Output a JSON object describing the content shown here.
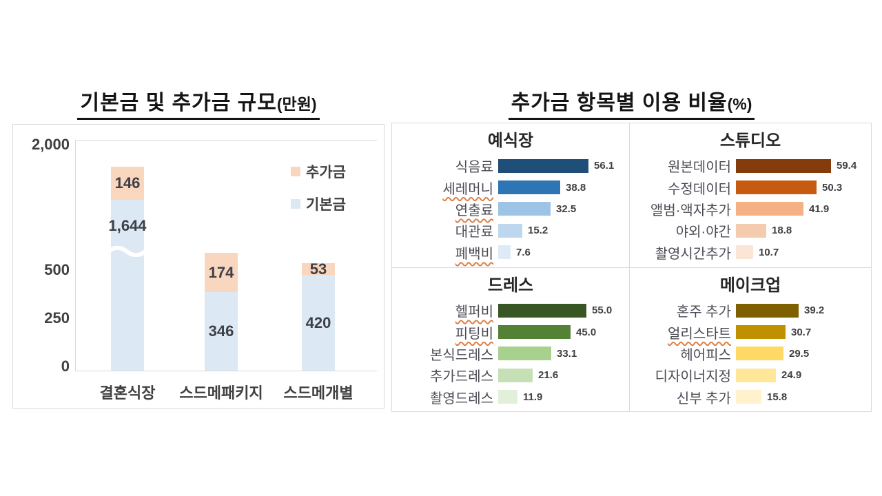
{
  "left_section": {
    "title": "기본금 및 추가금 규모",
    "unit": "(만원)"
  },
  "right_section": {
    "title": "추가금 항목별 이용 비율",
    "unit": "(%)"
  },
  "chart_data": [
    {
      "type": "bar",
      "stacked": true,
      "axis_break": true,
      "title": "기본금 및 추가금 규모(만원)",
      "categories": [
        "결혼식장",
        "스드메패키지",
        "스드메개별"
      ],
      "series": [
        {
          "name": "기본금",
          "color": "#DCE8F4",
          "values": [
            "1,644",
            "346",
            "420"
          ]
        },
        {
          "name": "추가금",
          "color": "#F9D6BE",
          "values": [
            "146",
            "174",
            "53"
          ]
        }
      ],
      "yticks": [
        "2,000",
        "500",
        "250",
        "0"
      ],
      "ylim": [
        0,
        2000
      ],
      "legend": [
        {
          "label": "추가금",
          "color": "#F9D6BE"
        },
        {
          "label": "기본금",
          "color": "#DCE8F4"
        }
      ],
      "legend_position": "top-right",
      "grid": false
    },
    {
      "type": "bar",
      "orientation": "horizontal",
      "title": "예식장",
      "rows": [
        {
          "label": "식음료",
          "value": "56.1",
          "color": "#1F4E79",
          "squiggle": false
        },
        {
          "label": "세레머니",
          "value": "38.8",
          "color": "#2E75B6",
          "squiggle": true
        },
        {
          "label": "연출료",
          "value": "32.5",
          "color": "#9DC3E6",
          "squiggle": true
        },
        {
          "label": "대관료",
          "value": "15.2",
          "color": "#BDD7EE",
          "squiggle": false
        },
        {
          "label": "폐백비",
          "value": "7.6",
          "color": "#DEEBF7",
          "squiggle": true
        }
      ]
    },
    {
      "type": "bar",
      "orientation": "horizontal",
      "title": "스튜디오",
      "rows": [
        {
          "label": "원본데이터",
          "value": "59.4",
          "color": "#843C0C",
          "squiggle": false
        },
        {
          "label": "수정데이터",
          "value": "50.3",
          "color": "#C55A11",
          "squiggle": false
        },
        {
          "label": "앨범·액자추가",
          "value": "41.9",
          "color": "#F4B183",
          "squiggle": false
        },
        {
          "label": "야외·야간",
          "value": "18.8",
          "color": "#F5CBAE",
          "squiggle": false
        },
        {
          "label": "촬영시간추가",
          "value": "10.7",
          "color": "#FBE5D6",
          "squiggle": false
        }
      ]
    },
    {
      "type": "bar",
      "orientation": "horizontal",
      "title": "드레스",
      "rows": [
        {
          "label": "헬퍼비",
          "value": "55.0",
          "color": "#375623",
          "squiggle": true
        },
        {
          "label": "피팅비",
          "value": "45.0",
          "color": "#538135",
          "squiggle": true
        },
        {
          "label": "본식드레스",
          "value": "33.1",
          "color": "#A9D18E",
          "squiggle": false
        },
        {
          "label": "추가드레스",
          "value": "21.6",
          "color": "#C5E0B4",
          "squiggle": false
        },
        {
          "label": "촬영드레스",
          "value": "11.9",
          "color": "#E2F0D9",
          "squiggle": false
        }
      ]
    },
    {
      "type": "bar",
      "orientation": "horizontal",
      "title": "메이크업",
      "rows": [
        {
          "label": "혼주 추가",
          "value": "39.2",
          "color": "#7F6000",
          "squiggle": false
        },
        {
          "label": "얼리스타트",
          "value": "30.7",
          "color": "#BF9000",
          "squiggle": true
        },
        {
          "label": "헤어피스",
          "value": "29.5",
          "color": "#FFD966",
          "squiggle": false
        },
        {
          "label": "디자이너지정",
          "value": "24.9",
          "color": "#FFE699",
          "squiggle": false
        },
        {
          "label": "신부 추가",
          "value": "15.8",
          "color": "#FFF2CC",
          "squiggle": false
        }
      ]
    }
  ]
}
